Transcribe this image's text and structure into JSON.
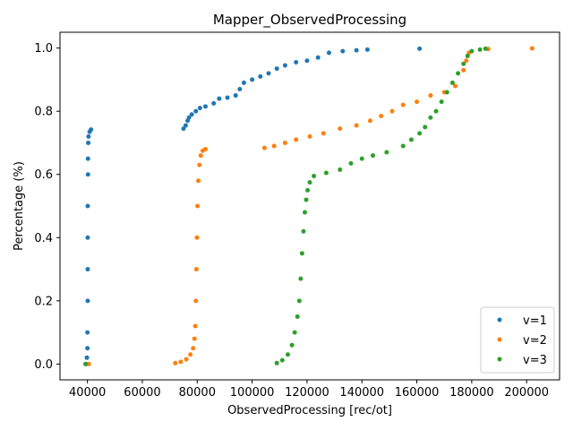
{
  "chart_data": {
    "type": "scatter",
    "title": "Mapper_ObservedProcessing",
    "xlabel": "ObservedProcessing [rec/ot]",
    "ylabel": "Percentage (%)",
    "xlim": [
      30000,
      212000
    ],
    "ylim": [
      -0.05,
      1.05
    ],
    "xticks": [
      40000,
      60000,
      80000,
      100000,
      120000,
      140000,
      160000,
      180000,
      200000
    ],
    "xtick_labels": [
      "40000",
      "60000",
      "80000",
      "100000",
      "120000",
      "140000",
      "160000",
      "180000",
      "200000"
    ],
    "yticks": [
      0.0,
      0.2,
      0.4,
      0.6,
      0.8,
      1.0
    ],
    "ytick_labels": [
      "0.0",
      "0.2",
      "0.4",
      "0.6",
      "0.8",
      "1.0"
    ],
    "grid": false,
    "legend": {
      "placement": "lower-right"
    },
    "series": [
      {
        "name": "v=1",
        "color": "#1f77b4",
        "points": [
          [
            39500,
            0.0
          ],
          [
            39800,
            0.02
          ],
          [
            40000,
            0.05
          ],
          [
            40000,
            0.1
          ],
          [
            40100,
            0.2
          ],
          [
            40100,
            0.3
          ],
          [
            40100,
            0.4
          ],
          [
            40100,
            0.5
          ],
          [
            40200,
            0.6
          ],
          [
            40200,
            0.65
          ],
          [
            40300,
            0.7
          ],
          [
            40400,
            0.72
          ],
          [
            40800,
            0.735
          ],
          [
            41300,
            0.742
          ],
          [
            75000,
            0.745
          ],
          [
            75800,
            0.755
          ],
          [
            76500,
            0.77
          ],
          [
            77000,
            0.78
          ],
          [
            78000,
            0.79
          ],
          [
            79500,
            0.8
          ],
          [
            81000,
            0.81
          ],
          [
            83000,
            0.815
          ],
          [
            86000,
            0.825
          ],
          [
            88000,
            0.84
          ],
          [
            91000,
            0.843
          ],
          [
            94000,
            0.85
          ],
          [
            95500,
            0.87
          ],
          [
            97000,
            0.89
          ],
          [
            100000,
            0.9
          ],
          [
            103000,
            0.91
          ],
          [
            106000,
            0.92
          ],
          [
            109000,
            0.935
          ],
          [
            112000,
            0.945
          ],
          [
            116000,
            0.955
          ],
          [
            120000,
            0.96
          ],
          [
            124000,
            0.97
          ],
          [
            128000,
            0.985
          ],
          [
            133000,
            0.99
          ],
          [
            138000,
            0.993
          ],
          [
            142000,
            0.995
          ],
          [
            161000,
            0.998
          ]
        ]
      },
      {
        "name": "v=2",
        "color": "#ff7f0e",
        "points": [
          [
            40500,
            0.0
          ],
          [
            72000,
            0.003
          ],
          [
            74000,
            0.007
          ],
          [
            76000,
            0.015
          ],
          [
            77500,
            0.03
          ],
          [
            78500,
            0.05
          ],
          [
            79000,
            0.08
          ],
          [
            79300,
            0.12
          ],
          [
            79500,
            0.2
          ],
          [
            79700,
            0.3
          ],
          [
            79900,
            0.4
          ],
          [
            80100,
            0.5
          ],
          [
            80400,
            0.58
          ],
          [
            80800,
            0.63
          ],
          [
            81300,
            0.66
          ],
          [
            82000,
            0.675
          ],
          [
            83000,
            0.68
          ],
          [
            104500,
            0.684
          ],
          [
            108000,
            0.69
          ],
          [
            112000,
            0.7
          ],
          [
            116000,
            0.71
          ],
          [
            121000,
            0.72
          ],
          [
            126000,
            0.73
          ],
          [
            132000,
            0.745
          ],
          [
            138000,
            0.755
          ],
          [
            143000,
            0.77
          ],
          [
            147000,
            0.785
          ],
          [
            151000,
            0.8
          ],
          [
            155000,
            0.82
          ],
          [
            160000,
            0.83
          ],
          [
            165000,
            0.85
          ],
          [
            170000,
            0.86
          ],
          [
            174000,
            0.88
          ],
          [
            177000,
            0.93
          ],
          [
            178000,
            0.96
          ],
          [
            179000,
            0.985
          ],
          [
            186000,
            0.997
          ],
          [
            202000,
            0.999
          ]
        ]
      },
      {
        "name": "v=3",
        "color": "#2ca02c",
        "points": [
          [
            39300,
            0.0
          ],
          [
            109000,
            0.003
          ],
          [
            111000,
            0.012
          ],
          [
            113000,
            0.03
          ],
          [
            114500,
            0.06
          ],
          [
            115500,
            0.1
          ],
          [
            116500,
            0.15
          ],
          [
            117200,
            0.2
          ],
          [
            117700,
            0.27
          ],
          [
            118200,
            0.35
          ],
          [
            118700,
            0.42
          ],
          [
            119200,
            0.48
          ],
          [
            119700,
            0.52
          ],
          [
            120200,
            0.55
          ],
          [
            121000,
            0.575
          ],
          [
            122500,
            0.595
          ],
          [
            127000,
            0.605
          ],
          [
            132000,
            0.615
          ],
          [
            136000,
            0.635
          ],
          [
            140000,
            0.65
          ],
          [
            144000,
            0.66
          ],
          [
            149000,
            0.67
          ],
          [
            155000,
            0.69
          ],
          [
            158000,
            0.71
          ],
          [
            161000,
            0.73
          ],
          [
            163000,
            0.75
          ],
          [
            165000,
            0.78
          ],
          [
            167000,
            0.8
          ],
          [
            169000,
            0.83
          ],
          [
            171000,
            0.86
          ],
          [
            173000,
            0.89
          ],
          [
            175000,
            0.92
          ],
          [
            177000,
            0.95
          ],
          [
            178500,
            0.975
          ],
          [
            180000,
            0.99
          ],
          [
            183000,
            0.995
          ],
          [
            185000,
            0.998
          ]
        ]
      }
    ]
  }
}
